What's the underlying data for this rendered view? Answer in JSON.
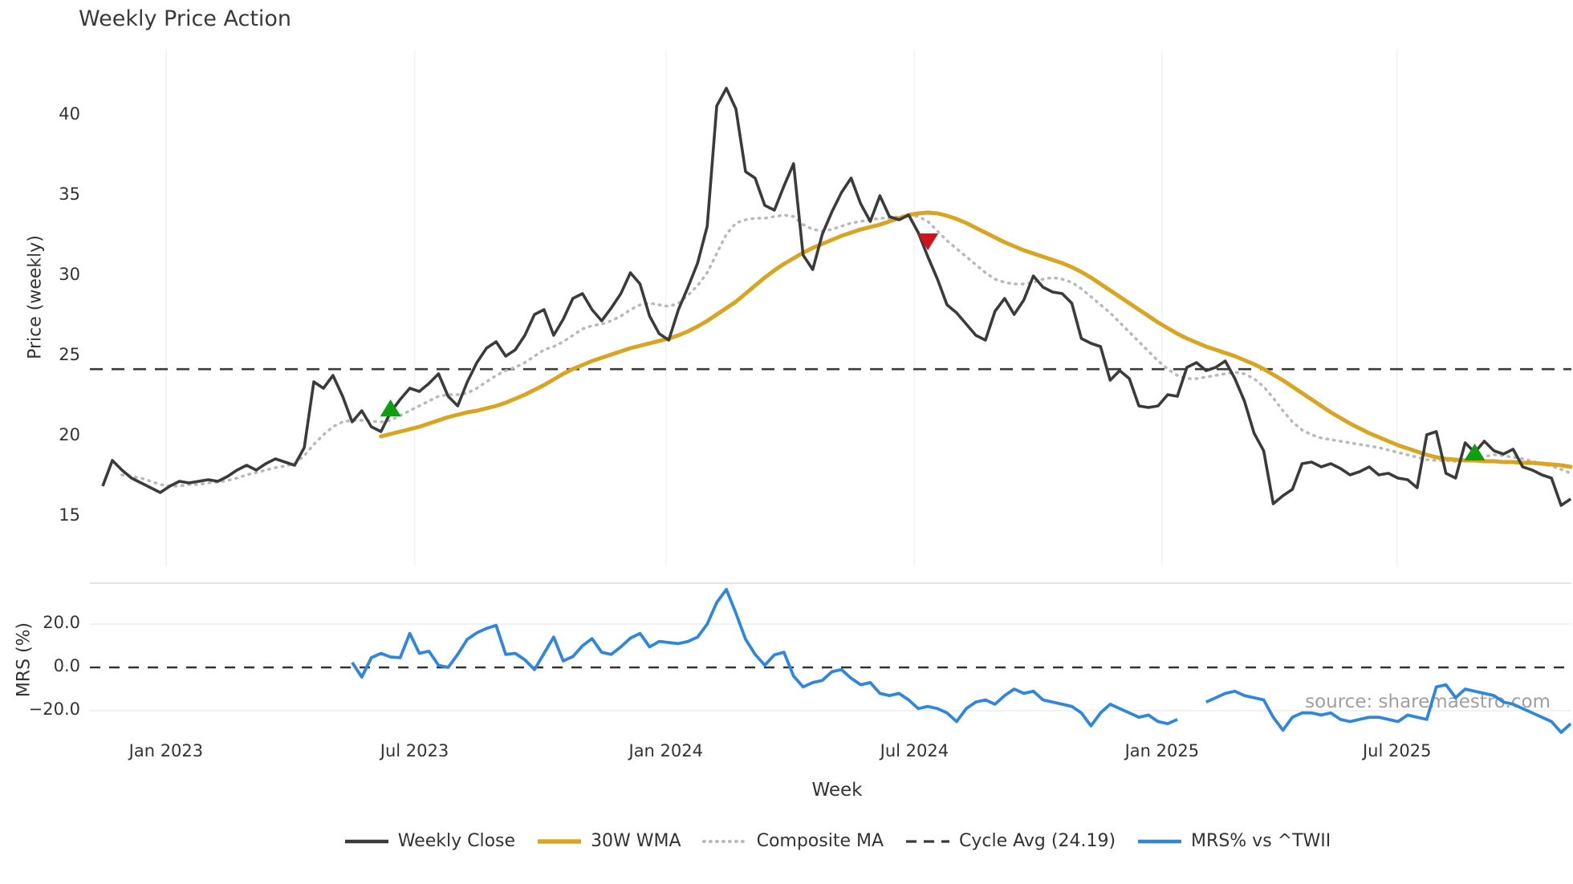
{
  "title": "Weekly Price Action",
  "watermark": "source: sharemaestro.com",
  "colors": {
    "weekly_close": "#3b3b3b",
    "wma": "#d9a521",
    "composite": "#b9b9b9",
    "cycle_avg": "#3b3b3b",
    "mrs": "#2e86de",
    "marker_green": "#0f9e0f",
    "marker_red": "#d2101e",
    "grid_vertical": "#f0f2f4",
    "grid_horizontal": "#eceef0",
    "panel_spine": "#d8dbde",
    "text": "#333333",
    "watermark_gray": "#8f8f8f"
  },
  "legend": {
    "items": [
      {
        "label": "Weekly Close",
        "swatch": "solid-dark"
      },
      {
        "label": "30W WMA",
        "swatch": "solid-gold"
      },
      {
        "label": "Composite MA",
        "swatch": "dotted-gray"
      },
      {
        "label": "Cycle Avg (24.19)",
        "swatch": "dashed-dark"
      },
      {
        "label": "MRS% vs ^TWII",
        "swatch": "solid-blue"
      }
    ]
  },
  "chart_data": {
    "type": "line",
    "title": "Weekly Price Action",
    "x_axis": {
      "label": "Week",
      "unit": "weekly",
      "total_weeks": 154,
      "tick_labels": [
        "Jan 2023",
        "Jul 2023",
        "Jan 2024",
        "Jul 2024",
        "Jan 2025",
        "Jul 2025"
      ],
      "tick_week_positions": [
        6.6,
        32.5,
        58.7,
        84.6,
        110.4,
        134.9
      ]
    },
    "price_panel": {
      "ylabel": "Price (weekly)",
      "yticks": [
        15,
        20,
        25,
        30,
        35,
        40
      ],
      "ylim": [
        13.9,
        43.1
      ],
      "series": [
        {
          "name": "Weekly Close",
          "color": "#3b3b3b",
          "style": "solid",
          "start_week": 0,
          "values": [
            16.9,
            18.5,
            17.9,
            17.4,
            17.1,
            16.8,
            16.5,
            16.9,
            17.2,
            17.1,
            17.2,
            17.3,
            17.2,
            17.5,
            17.9,
            18.2,
            17.9,
            18.3,
            18.6,
            18.4,
            18.2,
            19.3,
            23.4,
            23.0,
            23.8,
            22.5,
            20.9,
            21.6,
            20.6,
            20.3,
            21.5,
            22.3,
            23.0,
            22.8,
            23.3,
            23.9,
            22.5,
            21.9,
            23.4,
            24.6,
            25.5,
            25.9,
            25.0,
            25.4,
            26.3,
            27.6,
            27.9,
            26.3,
            27.3,
            28.6,
            28.9,
            27.9,
            27.2,
            28.0,
            28.9,
            30.2,
            29.5,
            27.5,
            26.4,
            26.0,
            27.9,
            29.3,
            30.8,
            33.1,
            40.6,
            41.7,
            40.4,
            36.5,
            36.1,
            34.4,
            34.1,
            35.6,
            37.0,
            31.3,
            30.4,
            32.6,
            34.0,
            35.2,
            36.1,
            34.5,
            33.4,
            35.0,
            33.7,
            33.5,
            33.8,
            32.7,
            31.2,
            29.8,
            28.2,
            27.7,
            27.0,
            26.3,
            26.0,
            27.8,
            28.6,
            27.6,
            28.5,
            30.0,
            29.3,
            29.0,
            28.9,
            28.3,
            26.1,
            25.8,
            25.6,
            23.5,
            24.1,
            23.6,
            21.9,
            21.8,
            21.9,
            22.6,
            22.5,
            24.3,
            24.6,
            24.1,
            24.3,
            24.7,
            23.6,
            22.2,
            20.2,
            19.1,
            15.8,
            16.3,
            16.7,
            18.3,
            18.4,
            18.1,
            18.3,
            18.0,
            17.6,
            17.8,
            18.1,
            17.6,
            17.7,
            17.4,
            17.3,
            16.8,
            20.1,
            20.3,
            17.7,
            17.4,
            19.6,
            19.0,
            19.7,
            19.1,
            18.9,
            19.2,
            18.1,
            17.9,
            17.6,
            17.4,
            15.7,
            16.1
          ]
        },
        {
          "name": "30W WMA",
          "color": "#d9a521",
          "style": "solid",
          "start_week": 29,
          "values": [
            20.0,
            20.15,
            20.3,
            20.45,
            20.6,
            20.8,
            21.0,
            21.2,
            21.35,
            21.5,
            21.6,
            21.75,
            21.9,
            22.1,
            22.35,
            22.6,
            22.9,
            23.2,
            23.55,
            23.9,
            24.2,
            24.45,
            24.7,
            24.9,
            25.1,
            25.3,
            25.5,
            25.65,
            25.8,
            25.95,
            26.1,
            26.3,
            26.55,
            26.85,
            27.2,
            27.6,
            28.0,
            28.4,
            28.9,
            29.4,
            29.9,
            30.35,
            30.75,
            31.1,
            31.45,
            31.75,
            32.0,
            32.25,
            32.5,
            32.7,
            32.9,
            33.05,
            33.2,
            33.4,
            33.6,
            33.8,
            33.9,
            33.95,
            33.9,
            33.75,
            33.55,
            33.3,
            33.0,
            32.7,
            32.4,
            32.1,
            31.85,
            31.6,
            31.4,
            31.2,
            31.0,
            30.8,
            30.55,
            30.25,
            29.9,
            29.5,
            29.1,
            28.7,
            28.3,
            27.9,
            27.5,
            27.1,
            26.75,
            26.4,
            26.1,
            25.85,
            25.6,
            25.4,
            25.2,
            25.0,
            24.75,
            24.5,
            24.2,
            23.85,
            23.5,
            23.1,
            22.7,
            22.3,
            21.9,
            21.5,
            21.15,
            20.8,
            20.5,
            20.2,
            19.95,
            19.7,
            19.45,
            19.25,
            19.05,
            18.85,
            18.7,
            18.6,
            18.55,
            18.5,
            18.5,
            18.45,
            18.45,
            18.4,
            18.4,
            18.35,
            18.35,
            18.3,
            18.25,
            18.2,
            18.1
          ]
        },
        {
          "name": "Composite MA",
          "color": "#b9b9b9",
          "style": "dotted",
          "start_week": 2,
          "values": [
            17.6,
            17.5,
            17.4,
            17.2,
            17.0,
            16.9,
            16.9,
            17.0,
            17.0,
            17.1,
            17.15,
            17.25,
            17.4,
            17.6,
            17.75,
            17.9,
            18.05,
            18.15,
            18.3,
            18.8,
            19.5,
            20.1,
            20.6,
            20.9,
            21.0,
            21.0,
            20.95,
            20.9,
            21.0,
            21.3,
            21.6,
            21.9,
            22.2,
            22.5,
            22.6,
            22.6,
            22.7,
            23.0,
            23.4,
            23.8,
            24.1,
            24.3,
            24.6,
            25.0,
            25.4,
            25.6,
            25.9,
            26.3,
            26.7,
            26.9,
            27.0,
            27.2,
            27.5,
            27.9,
            28.2,
            28.3,
            28.2,
            28.1,
            28.3,
            28.8,
            29.4,
            30.2,
            31.4,
            32.6,
            33.3,
            33.5,
            33.6,
            33.6,
            33.7,
            33.8,
            33.7,
            33.2,
            32.9,
            32.8,
            32.9,
            33.1,
            33.3,
            33.4,
            33.5,
            33.6,
            33.6,
            33.7,
            33.8,
            33.7,
            33.4,
            32.8,
            32.2,
            31.7,
            31.2,
            30.7,
            30.2,
            29.8,
            29.6,
            29.5,
            29.5,
            29.6,
            29.8,
            29.9,
            29.8,
            29.6,
            29.2,
            28.7,
            28.2,
            27.7,
            27.1,
            26.5,
            25.9,
            25.3,
            24.7,
            24.2,
            23.8,
            23.6,
            23.6,
            23.7,
            23.8,
            23.9,
            24.0,
            23.9,
            23.6,
            23.1,
            22.4,
            21.6,
            20.9,
            20.4,
            20.1,
            19.9,
            19.8,
            19.7,
            19.6,
            19.5,
            19.4,
            19.3,
            19.15,
            19.0,
            18.85,
            18.7,
            18.55,
            18.5,
            18.5,
            18.45,
            18.5,
            18.6,
            18.75,
            18.85,
            18.8,
            18.7,
            18.6,
            18.45,
            18.3,
            18.15,
            17.95,
            17.7
          ]
        },
        {
          "name": "Cycle Avg",
          "color": "#3b3b3b",
          "style": "dashed",
          "constant_value": 24.19
        }
      ],
      "signal_markers": [
        {
          "shape": "triangle-up",
          "color": "#0f9e0f",
          "week": 30,
          "price": 21.7
        },
        {
          "shape": "triangle-down",
          "color": "#d2101e",
          "week": 86,
          "price": 32.2
        },
        {
          "shape": "triangle-up",
          "color": "#0f9e0f",
          "week": 143,
          "price": 18.95
        }
      ]
    },
    "mrs_panel": {
      "ylabel": "MRS (%)",
      "ytick_values": [
        20,
        0,
        -20
      ],
      "ytick_labels": [
        "20.0",
        "0.0",
        "−20.0"
      ],
      "ylim": [
        -36,
        40
      ],
      "zero_line": {
        "style": "dashed",
        "color": "#333333",
        "value": 0
      },
      "series": [
        {
          "name": "MRS% vs ^TWII",
          "color": "#2e86de",
          "style": "solid",
          "start_week": 26,
          "values": [
            2.3,
            -4.5,
            4.5,
            6.5,
            4.8,
            4.5,
            15.7,
            6.5,
            7.5,
            1,
            0,
            6,
            13,
            16,
            18,
            19.4,
            6,
            6.5,
            3.5,
            -1,
            6.5,
            14,
            3,
            5,
            10,
            13.3,
            7,
            6,
            9.5,
            13.5,
            15.7,
            9.5,
            12,
            11.5,
            11,
            12,
            14,
            20,
            30,
            36,
            25,
            13,
            6,
            1,
            5.8,
            7,
            -4,
            -9,
            -7,
            -6,
            -2,
            -1,
            -5,
            -8,
            -7,
            -12,
            -13,
            -12,
            -15,
            -19,
            -18,
            -19,
            -21,
            -25,
            -19,
            -16,
            -15,
            -17,
            -13,
            -10,
            -12,
            -11,
            -15,
            -16,
            -17,
            -18,
            -21,
            -27,
            -21,
            -17,
            -19,
            -21,
            -23,
            -22,
            -25,
            -26,
            -24,
            null,
            null,
            -16,
            -14,
            -12,
            -11,
            -13,
            -14,
            -15,
            -23,
            -29,
            -23,
            -21,
            -21,
            -22,
            -21,
            -24,
            -25,
            -24,
            -23,
            -23,
            -24,
            -25,
            -22,
            -23,
            -24,
            -9,
            -8,
            -14,
            -10,
            -11,
            -12,
            -13,
            -16,
            -17,
            -19,
            -21,
            -23,
            -25,
            -30,
            -26
          ]
        }
      ]
    }
  }
}
